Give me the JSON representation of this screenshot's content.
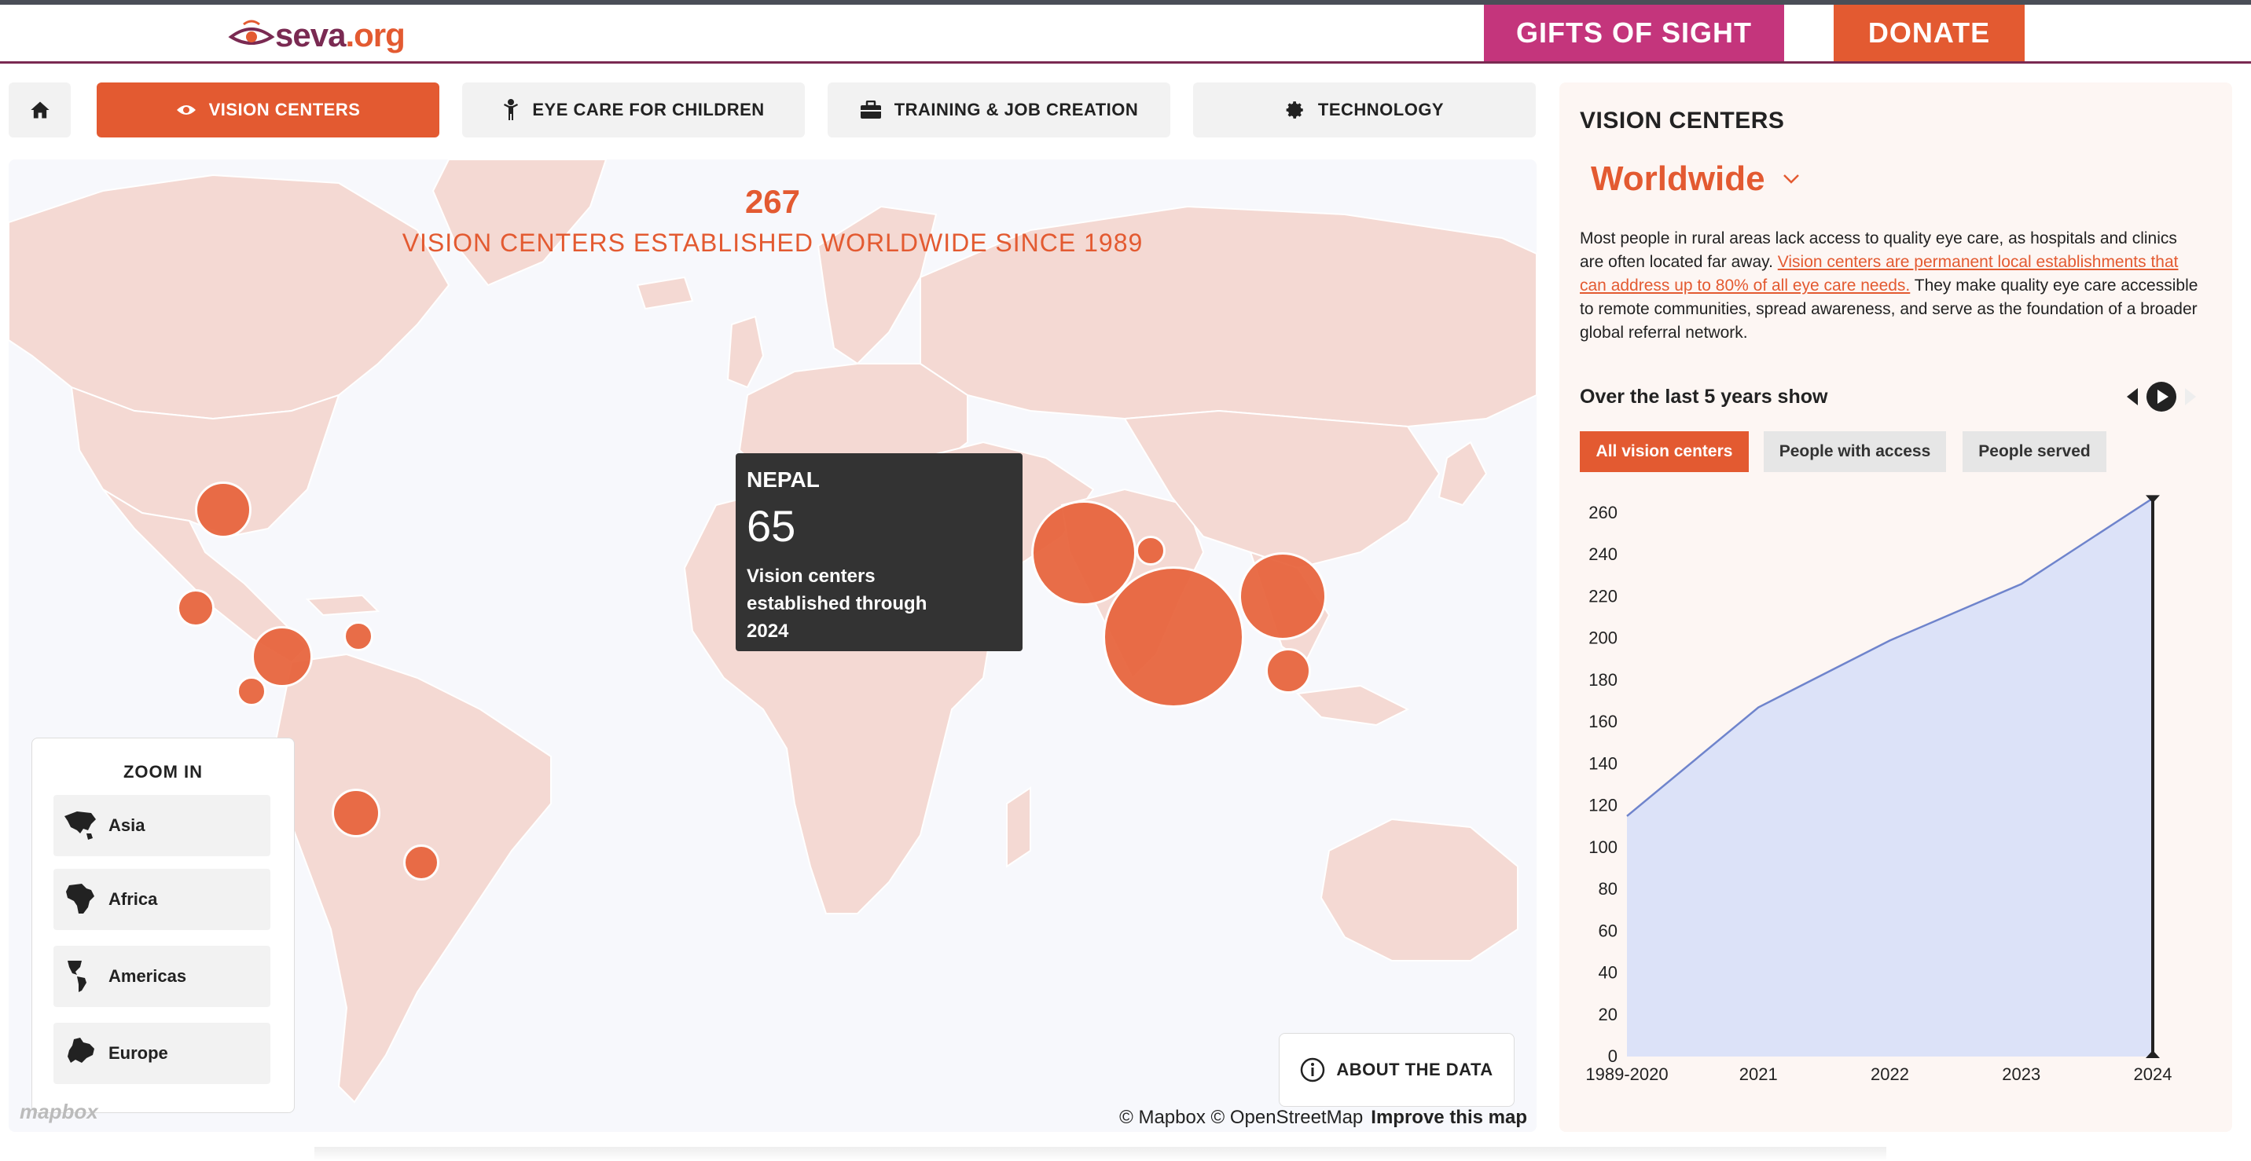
{
  "header": {
    "logo_text": "seva",
    "logo_suffix": ".org",
    "gifts_label": "GIFTS OF SIGHT",
    "donate_label": "DONATE"
  },
  "tabs": [
    {
      "label": "",
      "icon": "home-icon"
    },
    {
      "label": "VISION CENTERS",
      "icon": "eye-icon",
      "active": true
    },
    {
      "label": "EYE CARE FOR CHILDREN",
      "icon": "child-icon"
    },
    {
      "label": "TRAINING & JOB CREATION",
      "icon": "briefcase-icon"
    },
    {
      "label": "TECHNOLOGY",
      "icon": "gear-icon"
    }
  ],
  "map": {
    "headline_number": "267",
    "headline_text": "VISION CENTERS ESTABLISHED WORLDWIDE SINCE 1989",
    "tooltip": {
      "country": "NEPAL",
      "value": "65",
      "description": "Vision centers established through 2024"
    },
    "zoom": {
      "title": "ZOOM IN",
      "items": [
        "Asia",
        "Africa",
        "Americas",
        "Europe"
      ]
    },
    "about_label": "ABOUT THE DATA",
    "attribution": "© Mapbox © OpenStreetMap",
    "improve_label": "Improve this map",
    "mapbox_logo": "mapbox",
    "colors": {
      "land": "#f4d9d3",
      "water": "#f7f8fc",
      "bubble": "#e8663f"
    }
  },
  "panel": {
    "title": "VISION CENTERS",
    "region": "Worldwide",
    "desc_before": "Most people in rural areas lack access to quality eye care, as hospitals and clinics are often located far away. ",
    "desc_link": "Vision centers are permanent local establishments that can address up to 80% of all eye care needs.",
    "desc_after": " They make quality eye care accessible to remote communities, spread awareness, and serve as the foundation of a broader global referral network.",
    "over_label": "Over the last 5 years show",
    "metrics": [
      "All vision centers",
      "People with access",
      "People served"
    ],
    "accent": "#e35a31"
  },
  "chart_data": {
    "type": "area",
    "x": [
      "1989-2020",
      "2021",
      "2022",
      "2023",
      "2024"
    ],
    "series": [
      {
        "values": [
          115,
          167,
          199,
          226,
          267
        ]
      }
    ],
    "ylim": [
      0,
      260
    ],
    "yticks": [
      0,
      20,
      40,
      60,
      80,
      100,
      120,
      140,
      160,
      180,
      200,
      220,
      240,
      260
    ],
    "fill": "#dce2f8",
    "line": "#6f84cc",
    "marker_at": "2024"
  }
}
